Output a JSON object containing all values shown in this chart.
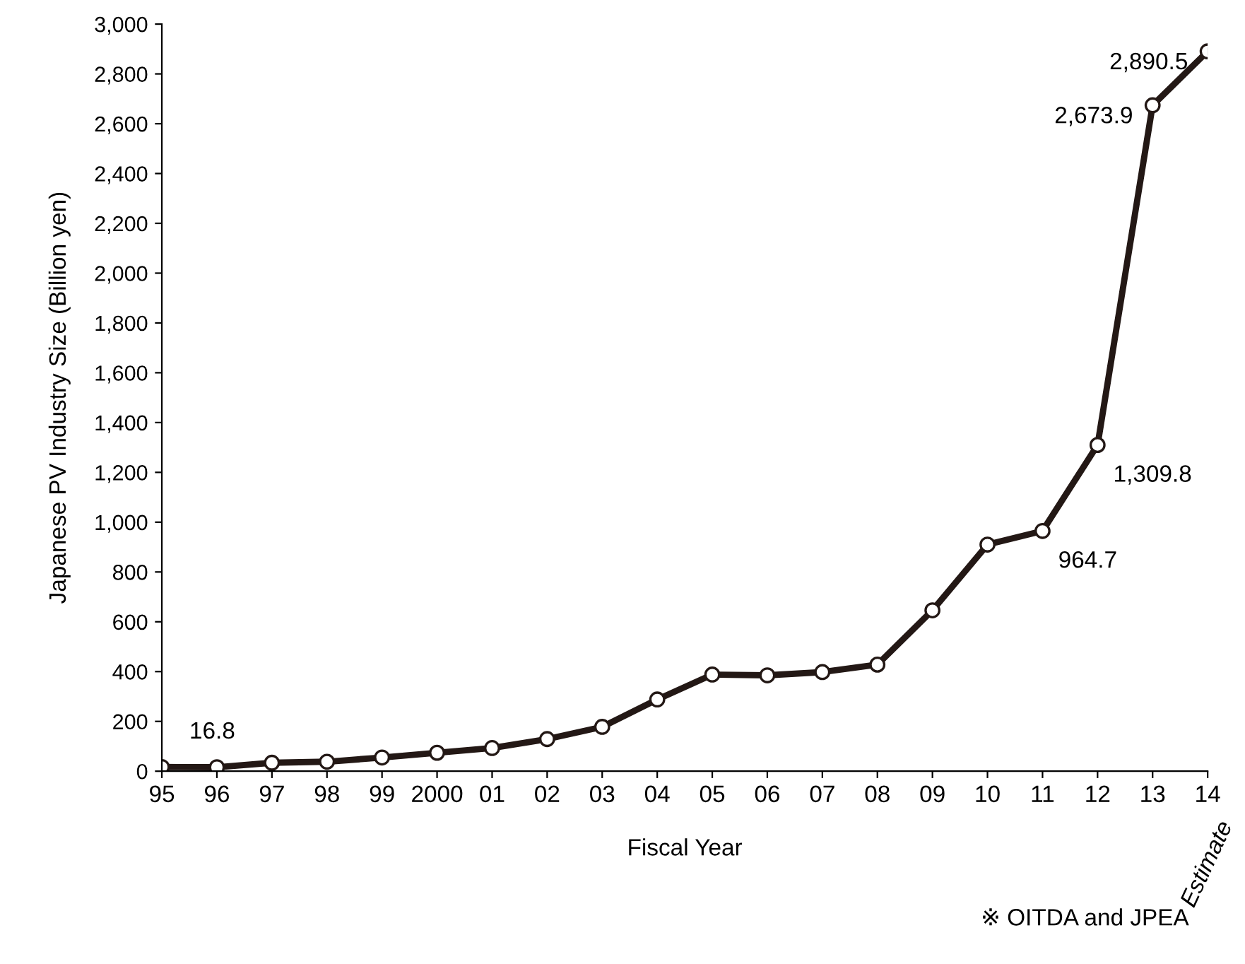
{
  "chart_data": {
    "type": "line",
    "xlabel": "Fiscal Year",
    "ylabel": "Japanese PV Industry Size (Billion yen)",
    "categories": [
      "95",
      "96",
      "97",
      "98",
      "99",
      "2000",
      "01",
      "02",
      "03",
      "04",
      "05",
      "06",
      "07",
      "08",
      "09",
      "10",
      "11",
      "12",
      "13",
      "14"
    ],
    "series": [
      {
        "color": "#231815",
        "values": [
          16.8,
          16,
          34,
          38,
          55,
          74,
          93,
          129,
          178,
          288,
          388,
          385,
          398,
          428,
          646,
          910,
          964.7,
          1309.8,
          2673.9,
          2890.5
        ],
        "value_labels": [
          "16.8",
          null,
          null,
          null,
          null,
          null,
          null,
          null,
          null,
          null,
          null,
          null,
          null,
          null,
          null,
          null,
          "964.7",
          "1,309.8",
          "2,673.9",
          "2,890.5"
        ]
      }
    ],
    "ylim": [
      0,
      3000
    ],
    "yticks": [
      {
        "value": 0,
        "label": "0"
      },
      {
        "value": 200,
        "label": "200"
      },
      {
        "value": 400,
        "label": "400"
      },
      {
        "value": 600,
        "label": "600"
      },
      {
        "value": 800,
        "label": "800"
      },
      {
        "value": 1000,
        "label": "1,000"
      },
      {
        "value": 1200,
        "label": "1,200"
      },
      {
        "value": 1400,
        "label": "1,400"
      },
      {
        "value": 1600,
        "label": "1,600"
      },
      {
        "value": 1800,
        "label": "1,800"
      },
      {
        "value": 2000,
        "label": "2,000"
      },
      {
        "value": 2200,
        "label": "2,200"
      },
      {
        "value": 2400,
        "label": "2,400"
      },
      {
        "value": 2600,
        "label": "2,600"
      },
      {
        "value": 2800,
        "label": "2,800"
      },
      {
        "value": 3000,
        "label": "3,000"
      }
    ],
    "grid": false,
    "legend": false,
    "marker": "circle",
    "line_style": "solid",
    "annotations": [
      "Estimate",
      "※ OITDA and JPEA"
    ]
  }
}
